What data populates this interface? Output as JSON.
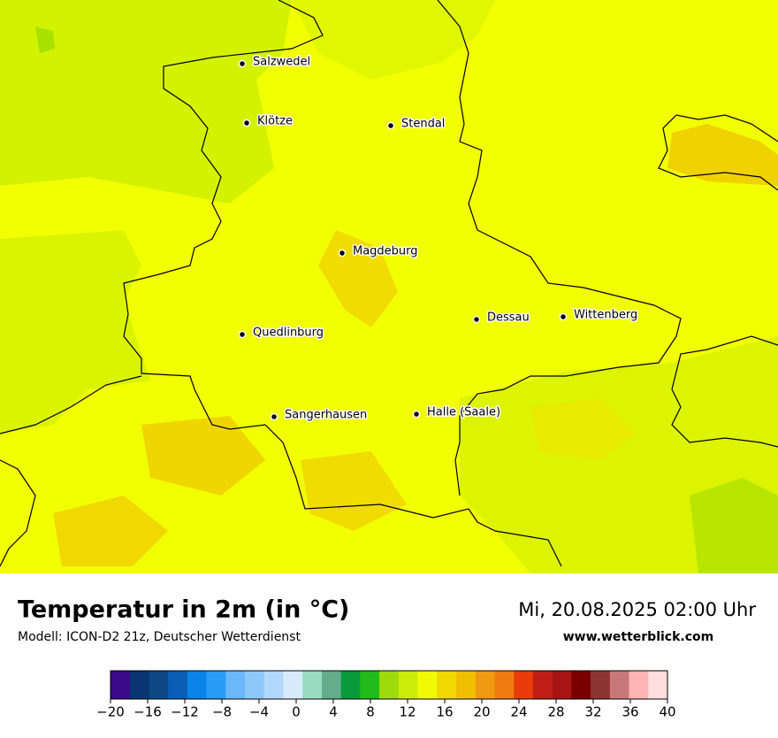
{
  "cities": [
    "Salzwedel",
    "Klötze",
    "Stendal",
    "Magdeburg",
    "Dessau",
    "Wittenberg",
    "Quedlinburg",
    "Sangerhausen",
    "Halle (Saale)"
  ],
  "legend": {
    "title": "Temperatur in 2m (in °C)",
    "model": "Modell: ICON-D2 21z, Deutscher Wetterdienst",
    "datetime": "Mi, 20.08.2025 02:00 Uhr",
    "website": "www.wetterblick.com"
  },
  "colorbar": {
    "range": [
      -20,
      40
    ],
    "colors": [
      "#3a0a8a",
      "#0a3472",
      "#0d4786",
      "#0a5fb4",
      "#0a84e8",
      "#2a9cf6",
      "#6ab8fa",
      "#8ec8fb",
      "#b2d8fc",
      "#d8ebfd",
      "#98dcc2",
      "#64ac8a",
      "#0a9a3c",
      "#22bb1a",
      "#9ddc0a",
      "#ccec0a",
      "#f0fa04",
      "#f0d800",
      "#f0c000",
      "#f09a14",
      "#f07c10",
      "#e83c0a",
      "#c01e14",
      "#a81414",
      "#7a0000",
      "#8c3434",
      "#c87878",
      "#ffb4b4",
      "#ffdede"
    ],
    "ticks": [
      {
        "value": -20,
        "label": "−20"
      },
      {
        "value": -16,
        "label": "−16"
      },
      {
        "value": -12,
        "label": "−12"
      },
      {
        "value": -8,
        "label": "−8"
      },
      {
        "value": -4,
        "label": "−4"
      },
      0,
      4,
      8,
      12,
      16,
      20,
      24,
      28,
      32,
      36,
      40
    ]
  }
}
